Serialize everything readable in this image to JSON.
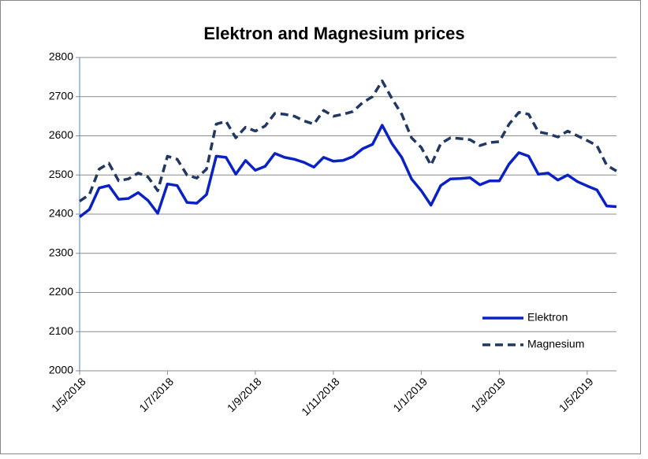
{
  "chart_data": {
    "type": "line",
    "title": "Elektron and Magnesium prices",
    "categories": [
      "1/5/2018",
      null,
      null,
      null,
      null,
      null,
      null,
      null,
      null,
      "1/7/2018",
      null,
      null,
      null,
      null,
      null,
      null,
      null,
      null,
      "1/9/2018",
      null,
      null,
      null,
      null,
      null,
      null,
      null,
      "1/11/2018",
      null,
      null,
      null,
      null,
      null,
      null,
      null,
      null,
      "1/1/2019",
      null,
      null,
      null,
      null,
      null,
      null,
      null,
      "1/3/2019",
      null,
      null,
      null,
      null,
      null,
      null,
      null,
      null,
      "1/5/2019",
      null,
      null,
      null
    ],
    "series": [
      {
        "name": "Elektron",
        "color": "#0a22c4",
        "dash": false,
        "values": [
          2393,
          2412,
          2467,
          2473,
          2438,
          2440,
          2455,
          2435,
          2402,
          2477,
          2473,
          2430,
          2428,
          2450,
          2548,
          2545,
          2502,
          2537,
          2512,
          2522,
          2555,
          2545,
          2540,
          2532,
          2520,
          2545,
          2535,
          2537,
          2547,
          2567,
          2578,
          2627,
          2580,
          2545,
          2490,
          2460,
          2423,
          2473,
          2490,
          2491,
          2493,
          2475,
          2485,
          2485,
          2528,
          2557,
          2548,
          2502,
          2505,
          2487,
          2500,
          2483,
          2472,
          2462,
          2421,
          2419
        ]
      },
      {
        "name": "Magnesium",
        "color": "#1f3864",
        "dash": true,
        "values": [
          2433,
          2450,
          2515,
          2530,
          2485,
          2490,
          2505,
          2495,
          2460,
          2548,
          2540,
          2500,
          2492,
          2515,
          2630,
          2637,
          2595,
          2622,
          2612,
          2625,
          2657,
          2655,
          2650,
          2638,
          2630,
          2665,
          2650,
          2655,
          2662,
          2685,
          2700,
          2740,
          2695,
          2655,
          2595,
          2570,
          2525,
          2580,
          2595,
          2593,
          2590,
          2575,
          2583,
          2585,
          2630,
          2660,
          2655,
          2610,
          2605,
          2597,
          2612,
          2600,
          2588,
          2575,
          2525,
          2510
        ]
      }
    ],
    "ylim": [
      2000,
      2800
    ],
    "yticks": [
      2000,
      2100,
      2200,
      2300,
      2400,
      2500,
      2600,
      2700,
      2800
    ],
    "grid": true,
    "legend": "lower right"
  }
}
